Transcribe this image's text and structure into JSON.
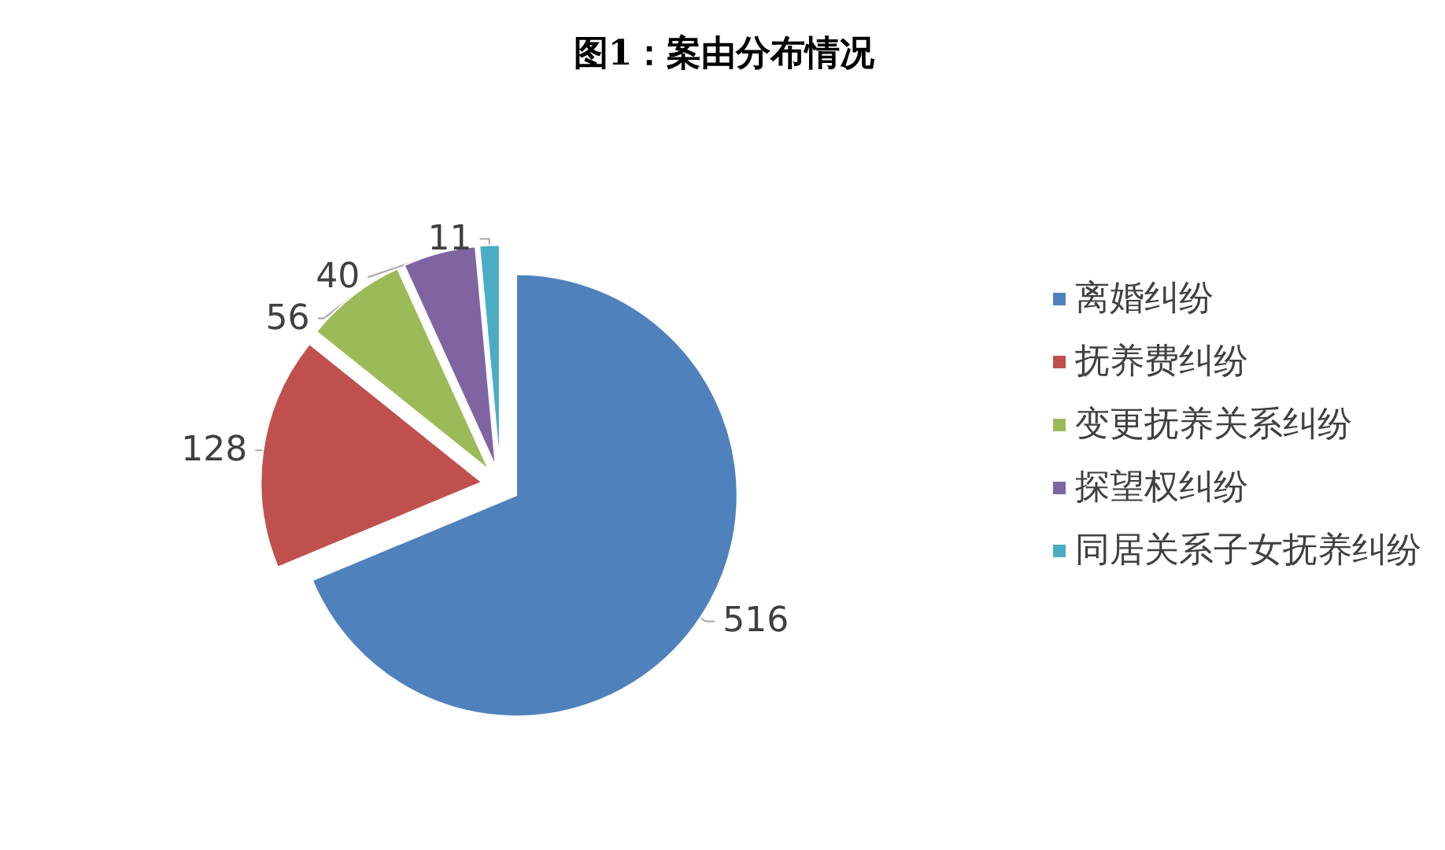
{
  "chart_data": {
    "type": "pie",
    "title": "图1：案由分布情况",
    "categories": [
      "离婚纠纷",
      "抚养费纠纷",
      "变更抚养关系纠纷",
      "探望权纠纷",
      "同居关系子女抚养纠纷"
    ],
    "values": [
      516,
      128,
      56,
      40,
      11
    ],
    "colors": [
      "#4f81bd",
      "#c0504d",
      "#9bbb59",
      "#8064a2",
      "#4bacc6"
    ],
    "data_labels": true,
    "legend": "right"
  }
}
